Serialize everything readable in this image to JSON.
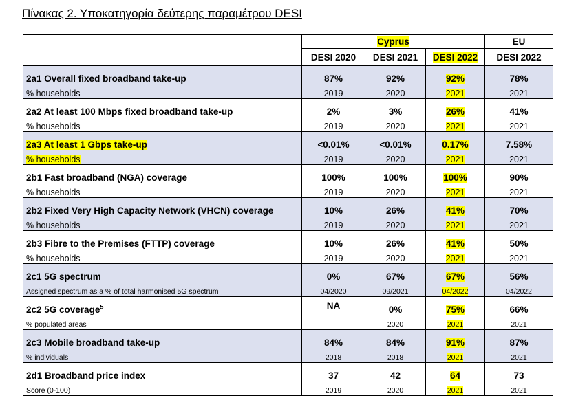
{
  "title": "Πίνακας 2. Υποκατηγορία δεύτερης παραμέτρου DESI",
  "header": {
    "group_cyprus": "Cyprus",
    "group_eu": "EU",
    "columns": [
      "DESI 2020",
      "DESI 2021",
      "DESI 2022",
      "DESI 2022"
    ]
  },
  "rows": [
    {
      "label": "2a1 Overall fixed broadband take-up",
      "values": [
        "87%",
        "92%",
        "92%",
        "78%"
      ],
      "sub_label": "% households",
      "years": [
        "2019",
        "2020",
        "2021",
        "2021"
      ]
    },
    {
      "label": "2a2 At least 100 Mbps fixed broadband take-up",
      "values": [
        "2%",
        "3%",
        "26%",
        "41%"
      ],
      "sub_label": "% households",
      "years": [
        "2019",
        "2020",
        "2021",
        "2021"
      ]
    },
    {
      "label": "2a3 At least 1 Gbps take-up",
      "values": [
        "<0.01%",
        "<0.01%",
        "0.17%",
        "7.58%"
      ],
      "sub_label": "% households",
      "years": [
        "2019",
        "2020",
        "2021",
        "2021"
      ]
    },
    {
      "label": "2b1 Fast broadband (NGA) coverage",
      "values": [
        "100%",
        "100%",
        "100%",
        "90%"
      ],
      "sub_label": "% households",
      "years": [
        "2019",
        "2020",
        "2021",
        "2021"
      ]
    },
    {
      "label": "2b2 Fixed Very High Capacity Network (VHCN) coverage",
      "values": [
        "10%",
        "26%",
        "41%",
        "70%"
      ],
      "sub_label": "% households",
      "years": [
        "2019",
        "2020",
        "2021",
        "2021"
      ]
    },
    {
      "label": "2b3 Fibre to the Premises (FTTP) coverage",
      "values": [
        "10%",
        "26%",
        "41%",
        "50%"
      ],
      "sub_label": "% households",
      "years": [
        "2019",
        "2020",
        "2021",
        "2021"
      ]
    },
    {
      "label": "2c1 5G spectrum",
      "values": [
        "0%",
        "67%",
        "67%",
        "56%"
      ],
      "sub_label": "Assigned spectrum as a % of total harmonised 5G spectrum",
      "years": [
        "04/2020",
        "09/2021",
        "04/2022",
        "04/2022"
      ]
    },
    {
      "label": "2c2 5G coverage",
      "label_sup": "5",
      "values": [
        "NA",
        "0%",
        "75%",
        "66%"
      ],
      "sub_label": "% populated areas",
      "years": [
        "",
        "2020",
        "2021",
        "2021"
      ]
    },
    {
      "label": "2c3 Mobile broadband take-up",
      "values": [
        "84%",
        "84%",
        "91%",
        "87%"
      ],
      "sub_label": "% individuals",
      "years": [
        "2018",
        "2018",
        "2021",
        "2021"
      ]
    },
    {
      "label": "2d1 Broadband price index",
      "values": [
        "37",
        "42",
        "64",
        "73"
      ],
      "sub_label": "Score (0-100)",
      "years": [
        "2019",
        "2020",
        "2021",
        "2021"
      ]
    }
  ],
  "colors": {
    "shade": "#dce0ef",
    "highlight": "#ffff00"
  }
}
